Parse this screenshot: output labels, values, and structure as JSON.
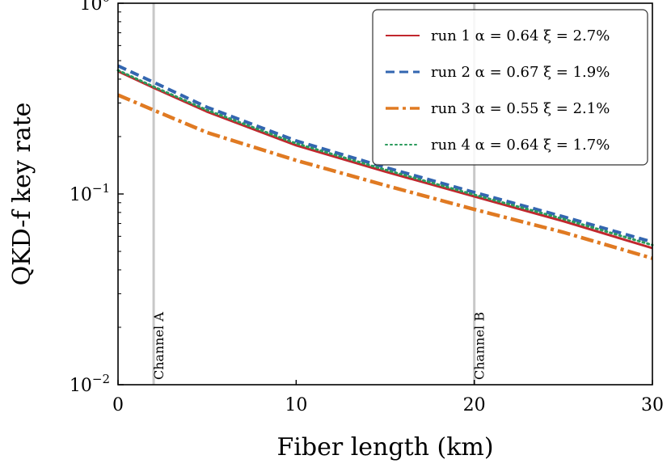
{
  "chart_data": {
    "type": "line",
    "title": "",
    "xlabel": "Fiber length (km)",
    "ylabel": "QKD-f key rate",
    "xlim": [
      0,
      30
    ],
    "ylim": [
      0.01,
      1
    ],
    "yscale": "log",
    "grid": false,
    "legend_position": "top-right",
    "x_ticks": [
      0,
      10,
      20,
      30
    ],
    "x_tick_labels": [
      "0",
      "10",
      "20",
      "30"
    ],
    "y_ticks": [
      0.01,
      0.1,
      1
    ],
    "y_tick_base": "10",
    "y_tick_exponents": [
      "−2",
      "−1",
      "0"
    ],
    "vertical_lines": [
      {
        "x": 2,
        "label": "Channel A",
        "color": "#c8c8c8"
      },
      {
        "x": 20,
        "label": "Channel B",
        "color": "#c8c8c8"
      }
    ],
    "series": [
      {
        "name": "run 1 α = 0.64 ξ = 2.7%",
        "color": "#c1272d",
        "style": "solid",
        "x": [
          0,
          2,
          5,
          10,
          15,
          20,
          25,
          30
        ],
        "y": [
          0.44,
          0.36,
          0.27,
          0.18,
          0.131,
          0.097,
          0.072,
          0.052
        ]
      },
      {
        "name": "run 2 α = 0.67 ξ = 1.9%",
        "color": "#3366b0",
        "style": "dashed",
        "x": [
          0,
          2,
          5,
          10,
          15,
          20,
          25,
          30
        ],
        "y": [
          0.47,
          0.385,
          0.285,
          0.19,
          0.138,
          0.102,
          0.076,
          0.056
        ]
      },
      {
        "name": "run 3 α = 0.55 ξ = 2.1%",
        "color": "#e07a22",
        "style": "dashdot",
        "x": [
          0,
          2,
          5,
          10,
          15,
          20,
          25,
          30
        ],
        "y": [
          0.33,
          0.275,
          0.21,
          0.15,
          0.111,
          0.083,
          0.063,
          0.046
        ]
      },
      {
        "name": "run 4 α = 0.64 ξ = 1.7%",
        "color": "#2a9a5b",
        "style": "dotted",
        "x": [
          0,
          2,
          5,
          10,
          15,
          20,
          25,
          30
        ],
        "y": [
          0.445,
          0.365,
          0.275,
          0.184,
          0.134,
          0.099,
          0.074,
          0.054
        ]
      }
    ]
  }
}
